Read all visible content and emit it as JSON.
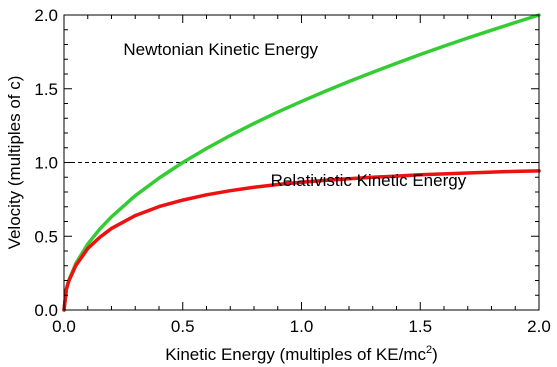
{
  "chart_data": {
    "type": "line",
    "title": "",
    "xlabel": "Kinetic Energy (multiples of KE/mc",
    "xlabel_superscript": "2",
    "xlabel_suffix": ")",
    "ylabel": "Velocity (multiples of c)",
    "xlim": [
      0.0,
      2.0
    ],
    "ylim": [
      0.0,
      2.0
    ],
    "x_ticks": [
      0.0,
      0.5,
      1.0,
      1.5,
      2.0
    ],
    "x_tick_labels": [
      "0.0",
      "0.5",
      "1.0",
      "1.5",
      "2.0"
    ],
    "y_ticks": [
      0.0,
      0.5,
      1.0,
      1.5,
      2.0
    ],
    "y_tick_labels": [
      "0.0",
      "0.5",
      "1.0",
      "1.5",
      "2.0"
    ],
    "grid": false,
    "reference_line": {
      "y": 1.0,
      "style": "dashed"
    },
    "x": [
      0.0,
      0.01,
      0.02,
      0.05,
      0.1,
      0.15,
      0.2,
      0.3,
      0.4,
      0.5,
      0.6,
      0.7,
      0.8,
      0.9,
      1.0,
      1.1,
      1.2,
      1.3,
      1.4,
      1.5,
      1.6,
      1.7,
      1.8,
      1.9,
      2.0
    ],
    "series": [
      {
        "key": "newtonian",
        "color": "#33cc33",
        "values": [
          0.0,
          0.141,
          0.2,
          0.316,
          0.447,
          0.548,
          0.632,
          0.775,
          0.894,
          1.0,
          1.095,
          1.183,
          1.265,
          1.342,
          1.414,
          1.483,
          1.549,
          1.612,
          1.673,
          1.732,
          1.789,
          1.844,
          1.897,
          1.949,
          2.0
        ]
      },
      {
        "key": "relativistic",
        "color": "#ee1111",
        "values": [
          0.0,
          0.14,
          0.196,
          0.302,
          0.417,
          0.492,
          0.553,
          0.64,
          0.701,
          0.745,
          0.781,
          0.809,
          0.832,
          0.851,
          0.866,
          0.879,
          0.89,
          0.9,
          0.908,
          0.917,
          0.923,
          0.929,
          0.935,
          0.94,
          0.943
        ]
      }
    ],
    "annotations": [
      {
        "text": "Newtonian Kinetic Energy",
        "x": 0.25,
        "y": 1.73
      },
      {
        "text": "Relativistic Kinetic Energy",
        "x": 0.87,
        "y": 0.84
      }
    ]
  }
}
